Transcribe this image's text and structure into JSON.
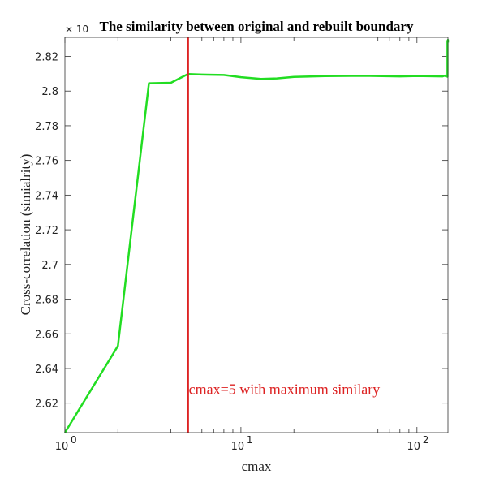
{
  "chart_data": {
    "type": "line",
    "title": "The similarity between original and rebuilt boundary",
    "xlabel": "cmax",
    "ylabel": "Cross-correlation (simialrity)",
    "xscale": "log",
    "xlim": [
      1,
      150
    ],
    "ylim": [
      2.603,
      2.831
    ],
    "x_ticks": [
      {
        "value": 1,
        "base": "10",
        "exp": "0"
      },
      {
        "value": 10,
        "base": "10",
        "exp": "1"
      },
      {
        "value": 100,
        "base": "10",
        "exp": "2"
      }
    ],
    "y_ticks": [
      2.62,
      2.64,
      2.66,
      2.68,
      2.7,
      2.72,
      2.74,
      2.76,
      2.78,
      2.8,
      2.82
    ],
    "y_tick_labels": [
      "2.62",
      "2.64",
      "2.66",
      "2.68",
      "2.7",
      "2.72",
      "2.74",
      "2.76",
      "2.78",
      "2.8",
      "2.82"
    ],
    "y_multiplier": "× 10",
    "series": [
      {
        "color": "#22dd22",
        "x": [
          1,
          2,
          3,
          4,
          5,
          6,
          8,
          10,
          13,
          16,
          20,
          30,
          50,
          80,
          100,
          140,
          145,
          149,
          149,
          150,
          150
        ],
        "y": [
          2.603,
          2.653,
          2.8045,
          2.8048,
          2.8098,
          2.8095,
          2.8093,
          2.808,
          2.807,
          2.8073,
          2.8082,
          2.8086,
          2.8088,
          2.8085,
          2.8087,
          2.8085,
          2.809,
          2.8083,
          2.829,
          2.8295,
          2.828
        ]
      }
    ],
    "vline": {
      "x": 5,
      "color": "#dd2222"
    },
    "annotation": {
      "text": "cmax=5 with maximum similary",
      "x": 5,
      "y": 2.628,
      "color": "#dd2222"
    },
    "grid": false,
    "legend": "none"
  }
}
